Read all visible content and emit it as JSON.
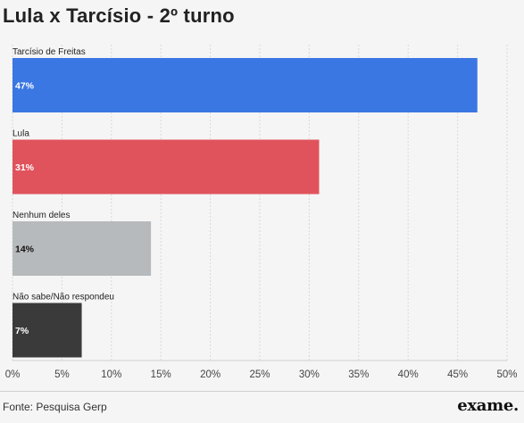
{
  "title": "Lula x Tarcísio - 2º turno",
  "source": "Fonte: Pesquisa Gerp",
  "logo_text": "exame.",
  "chart_data": {
    "type": "bar",
    "orientation": "horizontal",
    "title": "Lula x Tarcísio - 2º turno",
    "categories": [
      "Tarcísio de Freitas",
      "Lula",
      "Nenhum deles",
      "Não sabe/Não respondeu"
    ],
    "values": [
      47,
      31,
      14,
      7
    ],
    "data_labels": [
      "47%",
      "31%",
      "14%",
      "7%"
    ],
    "colors": [
      "#3b77e3",
      "#e0535c",
      "#b7babc",
      "#3a3a3a"
    ],
    "label_colors": [
      "#ffffff",
      "#ffffff",
      "#111111",
      "#ffffff"
    ],
    "xlim": [
      0,
      50
    ],
    "xticks": [
      0,
      5,
      10,
      15,
      20,
      25,
      30,
      35,
      40,
      45,
      50
    ],
    "xtick_labels": [
      "0%",
      "5%",
      "10%",
      "15%",
      "20%",
      "25%",
      "30%",
      "35%",
      "40%",
      "45%",
      "50%"
    ],
    "grid": true,
    "xlabel": "",
    "ylabel": ""
  }
}
